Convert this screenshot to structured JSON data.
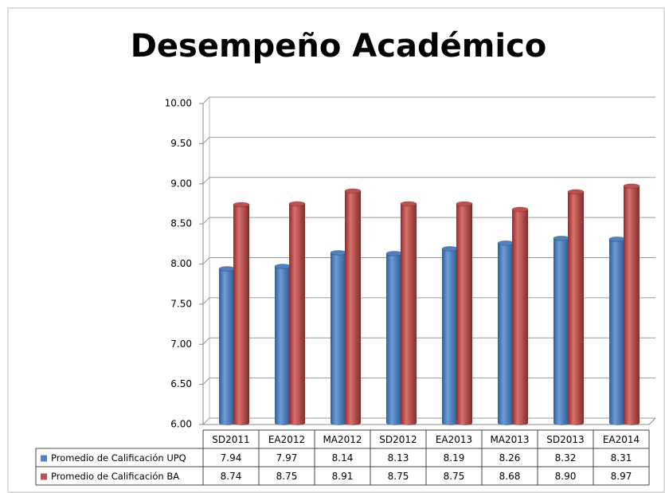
{
  "chart_data": {
    "type": "bar",
    "title": "Desempeño Académico",
    "categories": [
      "SD2011",
      "EA2012",
      "MA2012",
      "SD2012",
      "EA2013",
      "MA2013",
      "SD2013",
      "EA2014"
    ],
    "series": [
      {
        "name": "Promedio de Calificación UPQ",
        "color": "#4f81bd",
        "values": [
          7.94,
          7.97,
          8.14,
          8.13,
          8.19,
          8.26,
          8.32,
          8.31
        ],
        "value_labels": [
          "7.94",
          "7.97",
          "8.14",
          "8.13",
          "8.19",
          "8.26",
          "8.32",
          "8.31"
        ]
      },
      {
        "name": "Promedio de Calificación BA",
        "color": "#c0504d",
        "values": [
          8.74,
          8.75,
          8.91,
          8.75,
          8.75,
          8.68,
          8.9,
          8.97
        ],
        "value_labels": [
          "8.74",
          "8.75",
          "8.91",
          "8.75",
          "8.75",
          "8.68",
          "8.90",
          "8.97"
        ]
      }
    ],
    "ylim": [
      6,
      10
    ],
    "yticks": [
      {
        "value": 6,
        "label": "6.00"
      },
      {
        "value": 6.5,
        "label": "6.50"
      },
      {
        "value": 7,
        "label": "7.00"
      },
      {
        "value": 7.5,
        "label": "7.50"
      },
      {
        "value": 8,
        "label": "8.00"
      },
      {
        "value": 8.5,
        "label": "8.50"
      },
      {
        "value": 9,
        "label": "9.00"
      },
      {
        "value": 9.5,
        "label": "9.50"
      },
      {
        "value": 10,
        "label": "10.00"
      }
    ],
    "grid": true
  }
}
